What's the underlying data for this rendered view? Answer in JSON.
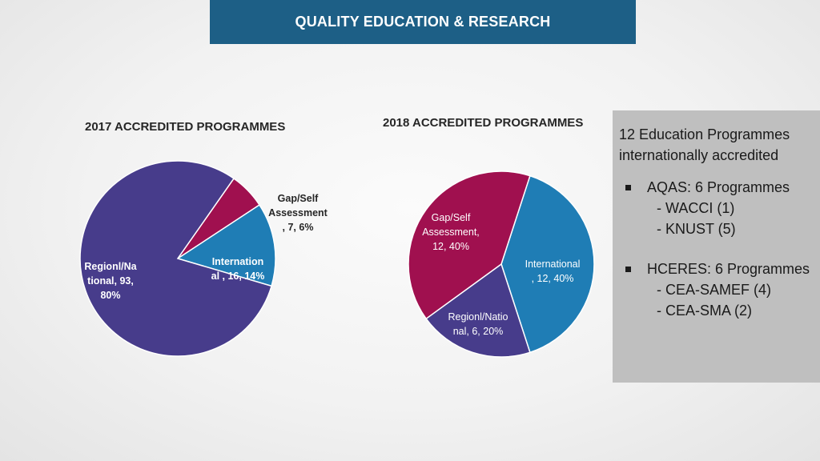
{
  "banner": {
    "title": "QUALITY EDUCATION & RESEARCH"
  },
  "chart_data": [
    {
      "type": "pie",
      "title": "2017 ACCREDITED PROGRAMMES",
      "slices": [
        {
          "name": "Gap/Self Assessment",
          "value": 7,
          "percent": "6%",
          "label_lines": [
            "Gap/Self",
            "Assessment",
            ", 7, 6%"
          ],
          "color": "#a0104f"
        },
        {
          "name": "International",
          "value": 16,
          "percent": "14%",
          "label_lines": [
            "Internation",
            "al , 16, 14%"
          ],
          "color": "#1f7db5"
        },
        {
          "name": "Regionl/National",
          "value": 93,
          "percent": "80%",
          "label_lines": [
            "Regionl/Na",
            "tional, 93,",
            "80%"
          ],
          "color": "#473c8b"
        }
      ]
    },
    {
      "type": "pie",
      "title": "2018 ACCREDITED PROGRAMMES",
      "slices": [
        {
          "name": "International",
          "value": 12,
          "percent": "40%",
          "label_lines": [
            "International",
            ", 12, 40%"
          ],
          "color": "#1f7db5"
        },
        {
          "name": "Regionl/National",
          "value": 6,
          "percent": "20%",
          "label_lines": [
            "Regionl/Natio",
            "nal, 6, 20%"
          ],
          "color": "#473c8b"
        },
        {
          "name": "Gap/Self Assessment",
          "value": 12,
          "percent": "40%",
          "label_lines": [
            "Gap/Self",
            "Assessment,",
            "12, 40%"
          ],
          "color": "#a0104f"
        }
      ]
    }
  ],
  "panel": {
    "heading": "12 Education Programmes internationally accredited",
    "groups": [
      {
        "label": "AQAS: 6 Programmes",
        "items": [
          "- WACCI (1)",
          "- KNUST (5)"
        ]
      },
      {
        "label": "HCERES: 6 Programmes",
        "items": [
          "- CEA-SAMEF (4)",
          "- CEA-SMA (2)"
        ]
      }
    ]
  }
}
